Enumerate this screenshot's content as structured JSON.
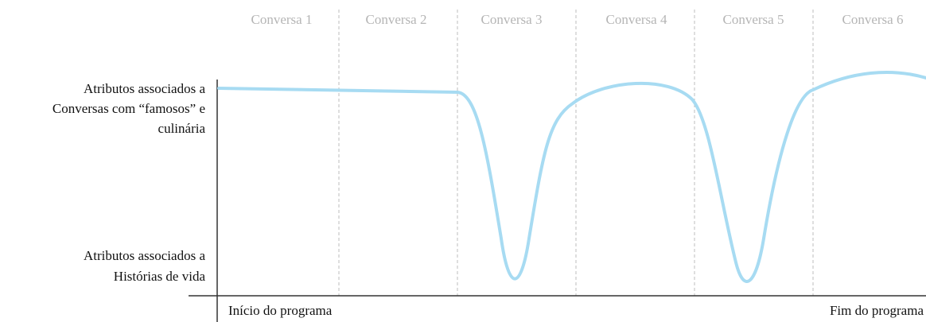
{
  "segments": [
    "Conversa 1",
    "Conversa 2",
    "Conversa 3",
    "Conversa 4",
    "Conversa 5",
    "Conversa 6"
  ],
  "y_labels": {
    "top": [
      "Atributos associados a",
      "Conversas com “famosos” e",
      "culinária"
    ],
    "bottom": [
      "Atributos associados a",
      "Histórias de vida"
    ]
  },
  "x_labels": {
    "start": "Início do programa",
    "end": "Fim do programa"
  }
}
